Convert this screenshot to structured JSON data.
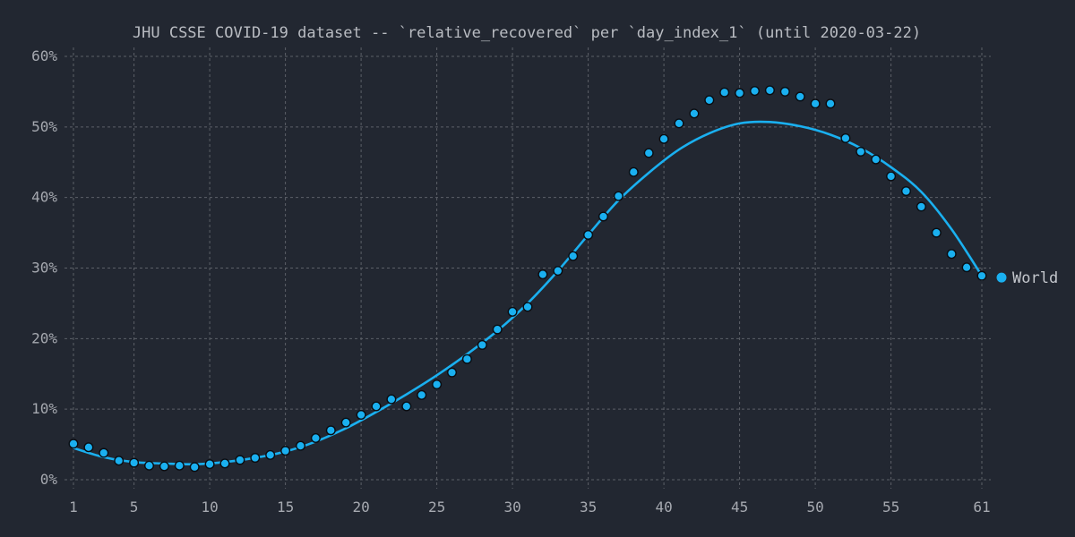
{
  "chart_data": {
    "type": "scatter",
    "title": "JHU CSSE COVID-19 dataset -- `relative_recovered` per `day_index_1` (until 2020-03-22)",
    "xlabel": "",
    "ylabel": "",
    "xlim": [
      1,
      61
    ],
    "ylim": [
      0,
      60
    ],
    "x_ticks": [
      1,
      5,
      10,
      15,
      20,
      25,
      30,
      35,
      40,
      45,
      50,
      55,
      61
    ],
    "y_ticks": [
      0,
      10,
      20,
      30,
      40,
      50,
      60
    ],
    "y_tick_labels": [
      "0%",
      "10%",
      "20%",
      "30%",
      "40%",
      "50%",
      "60%"
    ],
    "grid": true,
    "legend_position": "right",
    "color": "#1ab0f0",
    "series": [
      {
        "name": "World",
        "x": [
          1,
          2,
          3,
          4,
          5,
          6,
          7,
          8,
          9,
          10,
          11,
          12,
          13,
          14,
          15,
          16,
          17,
          18,
          19,
          20,
          21,
          22,
          23,
          24,
          25,
          26,
          27,
          28,
          29,
          30,
          31,
          32,
          33,
          34,
          35,
          36,
          37,
          38,
          39,
          40,
          41,
          42,
          43,
          44,
          45,
          46,
          47,
          48,
          49,
          50,
          51,
          52,
          53,
          54,
          55,
          56,
          57,
          58,
          59,
          60,
          61
        ],
        "y": [
          5.1,
          4.6,
          3.8,
          2.7,
          2.4,
          2.0,
          1.9,
          2.0,
          1.8,
          2.2,
          2.3,
          2.8,
          3.1,
          3.5,
          4.1,
          4.8,
          5.9,
          7.0,
          8.1,
          9.2,
          10.4,
          11.4,
          10.4,
          12.0,
          13.5,
          15.2,
          17.1,
          19.1,
          21.3,
          23.8,
          24.5,
          29.1,
          29.6,
          31.7,
          34.7,
          37.3,
          40.2,
          43.6,
          46.3,
          48.3,
          50.5,
          51.9,
          53.8,
          54.9,
          54.8,
          55.1,
          55.2,
          55.0,
          54.3,
          53.3,
          53.3,
          48.4,
          46.5,
          45.4,
          43.0,
          40.9,
          38.7,
          35.0,
          32.0,
          30.1,
          28.9
        ]
      }
    ],
    "trend": {
      "x": [
        1,
        3,
        5,
        7,
        9,
        11,
        13,
        15,
        17,
        19,
        21,
        23,
        25,
        27,
        29,
        31,
        33,
        35,
        37,
        39,
        41,
        43,
        45,
        47,
        49,
        51,
        53,
        55,
        57,
        59,
        61
      ],
      "y": [
        4.5,
        3.2,
        2.5,
        2.3,
        2.2,
        2.5,
        3.1,
        4.0,
        5.4,
        7.3,
        9.6,
        12.1,
        14.8,
        17.8,
        21.1,
        25.0,
        29.6,
        34.7,
        39.6,
        43.5,
        46.8,
        49.1,
        50.5,
        50.7,
        50.1,
        48.9,
        47.0,
        44.3,
        40.8,
        35.5,
        28.9
      ]
    }
  }
}
